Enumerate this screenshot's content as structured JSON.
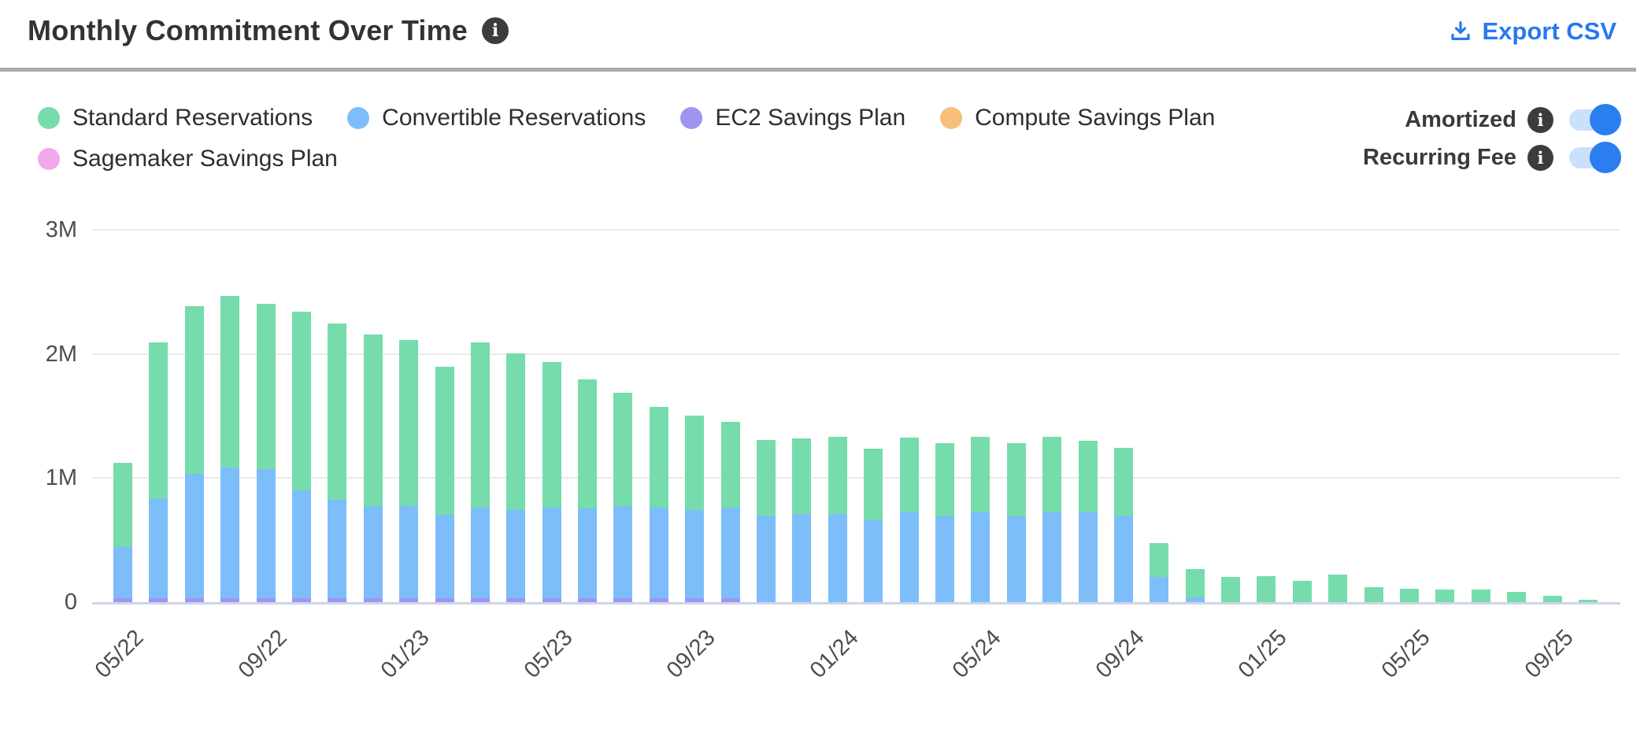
{
  "header": {
    "title": "Monthly Commitment Over Time",
    "export_label": "Export CSV",
    "export_color": "#2878f0"
  },
  "legend": {
    "items": [
      {
        "label": "Standard Reservations",
        "color": "#76dcab"
      },
      {
        "label": "Convertible Reservations",
        "color": "#7cbdfa"
      },
      {
        "label": "EC2 Savings Plan",
        "color": "#9e95f2"
      },
      {
        "label": "Compute Savings Plan",
        "color": "#f7c07a"
      },
      {
        "label": "Sagemaker Savings Plan",
        "color": "#f0a9ec"
      }
    ]
  },
  "controls": {
    "toggles": [
      {
        "label": "Amortized",
        "state": "on"
      },
      {
        "label": "Recurring Fee",
        "state": "on"
      }
    ],
    "toggle_on_color": "#2a7ef0",
    "toggle_track_color": "#cbe0fa"
  },
  "chart_data": {
    "type": "bar",
    "stacked": true,
    "title": "Monthly Commitment Over Time",
    "value_unit": "millions",
    "ylim": [
      0,
      3
    ],
    "grid": "horizontal",
    "legend_position": "top-left",
    "x_tick_interval": 4,
    "x": [
      "05/22",
      "06/22",
      "07/22",
      "08/22",
      "09/22",
      "10/22",
      "11/22",
      "12/22",
      "01/23",
      "02/23",
      "03/23",
      "04/23",
      "05/23",
      "06/23",
      "07/23",
      "08/23",
      "09/23",
      "10/23",
      "11/23",
      "12/23",
      "01/24",
      "02/24",
      "03/24",
      "04/24",
      "05/24",
      "06/24",
      "07/24",
      "08/24",
      "09/24",
      "10/24",
      "11/24",
      "12/24",
      "01/25",
      "02/25",
      "03/25",
      "04/25",
      "05/25",
      "06/25",
      "07/25",
      "08/25",
      "09/25",
      "10/25"
    ],
    "series": [
      {
        "name": "Standard Reservations",
        "color": "#76dcab",
        "values": [
          0.68,
          1.26,
          1.35,
          1.38,
          1.33,
          1.44,
          1.42,
          1.38,
          1.34,
          1.19,
          1.33,
          1.26,
          1.17,
          1.04,
          0.91,
          0.81,
          0.76,
          0.69,
          0.61,
          0.61,
          0.62,
          0.58,
          0.6,
          0.59,
          0.61,
          0.59,
          0.61,
          0.58,
          0.55,
          0.27,
          0.23,
          0.2,
          0.21,
          0.17,
          0.22,
          0.12,
          0.11,
          0.1,
          0.1,
          0.08,
          0.05,
          0.02
        ]
      },
      {
        "name": "Convertible Reservations",
        "color": "#7cbdfa",
        "values": [
          0.41,
          0.8,
          1.0,
          1.05,
          1.04,
          0.87,
          0.79,
          0.74,
          0.74,
          0.67,
          0.73,
          0.71,
          0.73,
          0.72,
          0.74,
          0.73,
          0.71,
          0.73,
          0.7,
          0.71,
          0.71,
          0.66,
          0.72,
          0.69,
          0.72,
          0.69,
          0.72,
          0.72,
          0.69,
          0.2,
          0.04,
          0,
          0,
          0,
          0,
          0,
          0,
          0,
          0,
          0,
          0,
          0
        ]
      },
      {
        "name": "EC2 Savings Plan",
        "color": "#9e95f2",
        "values": [
          0.03,
          0.03,
          0.03,
          0.03,
          0.03,
          0.03,
          0.03,
          0.03,
          0.03,
          0.03,
          0.03,
          0.03,
          0.03,
          0.03,
          0.03,
          0.03,
          0.03,
          0.03,
          0,
          0,
          0,
          0,
          0,
          0,
          0,
          0,
          0,
          0,
          0,
          0,
          0,
          0,
          0,
          0,
          0,
          0,
          0,
          0,
          0,
          0,
          0,
          0
        ]
      },
      {
        "name": "Compute Savings Plan",
        "color": "#f7c07a",
        "values": [
          0,
          0,
          0,
          0,
          0,
          0,
          0,
          0,
          0,
          0,
          0,
          0,
          0,
          0,
          0,
          0,
          0,
          0,
          0,
          0,
          0,
          0,
          0,
          0,
          0,
          0,
          0,
          0,
          0,
          0,
          0,
          0,
          0,
          0,
          0,
          0,
          0,
          0,
          0,
          0,
          0,
          0
        ]
      },
      {
        "name": "Sagemaker Savings Plan",
        "color": "#f0a9ec",
        "values": [
          0,
          0,
          0,
          0,
          0,
          0,
          0,
          0,
          0,
          0,
          0,
          0,
          0,
          0,
          0,
          0,
          0,
          0,
          0,
          0,
          0,
          0,
          0,
          0,
          0,
          0,
          0,
          0,
          0,
          0,
          0,
          0,
          0,
          0,
          0,
          0,
          0,
          0,
          0,
          0,
          0,
          0
        ]
      }
    ],
    "stack_order_bottom_to_top": [
      "EC2 Savings Plan",
      "Convertible Reservations",
      "Standard Reservations"
    ],
    "y_ticks": [
      {
        "label": "0",
        "value": 0
      },
      {
        "label": "1M",
        "value": 1
      },
      {
        "label": "2M",
        "value": 2
      },
      {
        "label": "3M",
        "value": 3
      }
    ]
  }
}
